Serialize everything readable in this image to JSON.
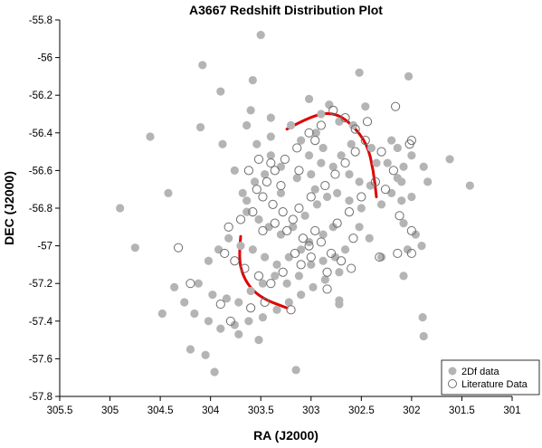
{
  "chart_data": {
    "type": "scatter",
    "title": "A3667 Redshift Distribution Plot",
    "xlabel": "RA (J2000)",
    "ylabel": "DEC (J2000)",
    "xlim": [
      305.5,
      301
    ],
    "ylim": [
      -57.8,
      -55.8
    ],
    "x_reversed": true,
    "xticks": [
      305.5,
      305,
      304.5,
      304,
      303.5,
      303,
      302.5,
      302,
      301.5,
      301
    ],
    "yticks": [
      -55.8,
      -56,
      -56.2,
      -56.4,
      -56.6,
      -56.8,
      -57,
      -57.2,
      -57.4,
      -57.6,
      -57.8
    ],
    "xtick_labels": [
      "305.5",
      "305",
      "304.5",
      "304",
      "303.5",
      "303",
      "302.5",
      "302",
      "301.5",
      "301"
    ],
    "ytick_labels": [
      "-55.8",
      "-56",
      "-56.2",
      "-56.4",
      "-56.6",
      "-56.8",
      "-57",
      "-57.2",
      "-57.4",
      "-57.6",
      "-57.8"
    ],
    "grid": false,
    "legend_position": "bottom-right",
    "colors": {
      "filled": "#b4b4b4",
      "open_stroke": "#6e6e6e",
      "curve": "#e00000"
    },
    "series": [
      {
        "name": "2Df data",
        "marker": "filled-circle",
        "points": [
          [
            303.5,
            -55.88
          ],
          [
            304.08,
            -56.04
          ],
          [
            302.52,
            -56.08
          ],
          [
            302.03,
            -56.1
          ],
          [
            304.6,
            -56.42
          ],
          [
            304.1,
            -56.37
          ],
          [
            304.42,
            -56.72
          ],
          [
            304.9,
            -56.8
          ],
          [
            304.75,
            -57.01
          ],
          [
            303.9,
            -56.18
          ],
          [
            303.58,
            -56.12
          ],
          [
            303.6,
            -56.28
          ],
          [
            303.88,
            -56.46
          ],
          [
            303.02,
            -56.22
          ],
          [
            302.82,
            -56.25
          ],
          [
            302.72,
            -56.34
          ],
          [
            302.95,
            -56.4
          ],
          [
            303.1,
            -56.44
          ],
          [
            302.88,
            -56.48
          ],
          [
            302.7,
            -56.52
          ],
          [
            302.78,
            -56.58
          ],
          [
            302.62,
            -56.62
          ],
          [
            302.52,
            -56.66
          ],
          [
            302.41,
            -56.68
          ],
          [
            302.3,
            -56.78
          ],
          [
            302.35,
            -56.56
          ],
          [
            302.6,
            -56.46
          ],
          [
            302.9,
            -56.56
          ],
          [
            303.0,
            -56.62
          ],
          [
            303.14,
            -56.64
          ],
          [
            303.3,
            -56.58
          ],
          [
            303.4,
            -56.52
          ],
          [
            303.46,
            -56.62
          ],
          [
            303.56,
            -56.66
          ],
          [
            303.68,
            -56.72
          ],
          [
            303.64,
            -56.82
          ],
          [
            303.52,
            -56.86
          ],
          [
            303.42,
            -56.9
          ],
          [
            303.3,
            -56.94
          ],
          [
            303.18,
            -56.9
          ],
          [
            303.06,
            -56.84
          ],
          [
            302.94,
            -56.78
          ],
          [
            302.84,
            -56.74
          ],
          [
            302.74,
            -56.72
          ],
          [
            302.62,
            -56.76
          ],
          [
            302.78,
            -56.9
          ],
          [
            302.88,
            -56.94
          ],
          [
            303.02,
            -56.98
          ],
          [
            303.1,
            -57.02
          ],
          [
            303.22,
            -57.06
          ],
          [
            303.34,
            -57.1
          ],
          [
            303.46,
            -57.06
          ],
          [
            303.58,
            -57.02
          ],
          [
            303.7,
            -57.0
          ],
          [
            303.82,
            -56.96
          ],
          [
            303.92,
            -57.02
          ],
          [
            304.02,
            -57.08
          ],
          [
            304.12,
            -57.2
          ],
          [
            303.98,
            -57.26
          ],
          [
            303.84,
            -57.28
          ],
          [
            303.72,
            -57.3
          ],
          [
            303.6,
            -57.24
          ],
          [
            303.48,
            -57.2
          ],
          [
            303.36,
            -57.16
          ],
          [
            303.24,
            -57.2
          ],
          [
            303.12,
            -57.16
          ],
          [
            303.0,
            -57.1
          ],
          [
            302.88,
            -57.08
          ],
          [
            302.76,
            -57.06
          ],
          [
            302.66,
            -57.02
          ],
          [
            302.72,
            -57.14
          ],
          [
            302.86,
            -57.18
          ],
          [
            302.98,
            -57.22
          ],
          [
            303.1,
            -57.26
          ],
          [
            303.22,
            -57.3
          ],
          [
            303.34,
            -57.34
          ],
          [
            303.48,
            -57.38
          ],
          [
            303.62,
            -57.4
          ],
          [
            303.76,
            -57.42
          ],
          [
            303.9,
            -57.44
          ],
          [
            304.02,
            -57.4
          ],
          [
            304.16,
            -57.36
          ],
          [
            304.26,
            -57.3
          ],
          [
            304.36,
            -57.22
          ],
          [
            304.48,
            -57.36
          ],
          [
            304.2,
            -57.55
          ],
          [
            304.05,
            -57.58
          ],
          [
            303.96,
            -57.67
          ],
          [
            303.72,
            -57.47
          ],
          [
            303.52,
            -57.5
          ],
          [
            303.15,
            -57.66
          ],
          [
            302.72,
            -57.29
          ],
          [
            302.72,
            -57.31
          ],
          [
            301.89,
            -57.38
          ],
          [
            301.88,
            -57.48
          ],
          [
            301.42,
            -56.68
          ],
          [
            301.62,
            -56.54
          ],
          [
            301.88,
            -56.58
          ],
          [
            301.84,
            -56.66
          ],
          [
            302.0,
            -56.52
          ],
          [
            302.14,
            -56.48
          ],
          [
            302.2,
            -56.44
          ],
          [
            302.08,
            -56.58
          ],
          [
            302.1,
            -56.66
          ],
          [
            302.2,
            -56.72
          ],
          [
            302.1,
            -56.76
          ],
          [
            302.0,
            -56.74
          ],
          [
            302.08,
            -56.88
          ],
          [
            301.96,
            -56.94
          ],
          [
            302.04,
            -57.02
          ],
          [
            301.9,
            -57.0
          ],
          [
            302.08,
            -57.16
          ],
          [
            302.3,
            -57.06
          ],
          [
            302.42,
            -56.96
          ],
          [
            302.52,
            -56.9
          ],
          [
            303.64,
            -56.76
          ],
          [
            303.76,
            -56.6
          ],
          [
            303.54,
            -56.46
          ],
          [
            303.4,
            -56.42
          ],
          [
            303.2,
            -56.36
          ],
          [
            302.58,
            -56.36
          ],
          [
            302.46,
            -56.26
          ],
          [
            302.4,
            -56.48
          ],
          [
            302.24,
            -56.56
          ],
          [
            302.14,
            -56.64
          ],
          [
            303.4,
            -56.32
          ],
          [
            303.64,
            -56.36
          ],
          [
            303.3,
            -56.72
          ],
          [
            302.96,
            -56.7
          ],
          [
            302.5,
            -56.8
          ],
          [
            302.9,
            -56.3
          ],
          [
            303.02,
            -56.52
          ]
        ]
      },
      {
        "name": "Literature Data",
        "marker": "open-circle",
        "points": [
          [
            304.32,
            -57.01
          ],
          [
            304.2,
            -57.2
          ],
          [
            303.9,
            -57.31
          ],
          [
            303.8,
            -57.4
          ],
          [
            303.6,
            -57.33
          ],
          [
            303.46,
            -57.3
          ],
          [
            303.2,
            -57.34
          ],
          [
            302.84,
            -57.23
          ],
          [
            303.1,
            -57.1
          ],
          [
            303.0,
            -57.06
          ],
          [
            302.6,
            -57.12
          ],
          [
            302.32,
            -57.06
          ],
          [
            302.58,
            -56.96
          ],
          [
            302.74,
            -56.88
          ],
          [
            302.96,
            -56.92
          ],
          [
            303.08,
            -56.96
          ],
          [
            303.18,
            -56.86
          ],
          [
            303.28,
            -56.82
          ],
          [
            303.38,
            -56.78
          ],
          [
            303.48,
            -56.74
          ],
          [
            303.58,
            -56.82
          ],
          [
            303.7,
            -56.86
          ],
          [
            303.82,
            -56.9
          ],
          [
            303.86,
            -57.04
          ],
          [
            303.76,
            -57.08
          ],
          [
            303.66,
            -57.12
          ],
          [
            303.52,
            -57.16
          ],
          [
            303.4,
            -57.2
          ],
          [
            303.28,
            -57.14
          ],
          [
            303.16,
            -57.04
          ],
          [
            303.02,
            -57.0
          ],
          [
            302.9,
            -56.98
          ],
          [
            302.8,
            -57.04
          ],
          [
            302.7,
            -57.08
          ],
          [
            303.48,
            -56.92
          ],
          [
            303.36,
            -56.88
          ],
          [
            303.24,
            -56.92
          ],
          [
            303.12,
            -56.8
          ],
          [
            303.0,
            -56.74
          ],
          [
            302.86,
            -56.68
          ],
          [
            302.76,
            -56.62
          ],
          [
            302.66,
            -56.56
          ],
          [
            302.56,
            -56.5
          ],
          [
            302.46,
            -56.44
          ],
          [
            302.56,
            -56.38
          ],
          [
            302.66,
            -56.32
          ],
          [
            302.78,
            -56.28
          ],
          [
            302.9,
            -56.36
          ],
          [
            303.02,
            -56.4
          ],
          [
            303.14,
            -56.48
          ],
          [
            303.26,
            -56.54
          ],
          [
            303.36,
            -56.6
          ],
          [
            303.44,
            -56.66
          ],
          [
            303.54,
            -56.7
          ],
          [
            303.62,
            -56.6
          ],
          [
            303.52,
            -56.54
          ],
          [
            303.4,
            -56.56
          ],
          [
            302.44,
            -56.34
          ],
          [
            302.3,
            -56.5
          ],
          [
            302.18,
            -56.6
          ],
          [
            302.26,
            -56.7
          ],
          [
            302.36,
            -56.66
          ],
          [
            302.16,
            -56.26
          ],
          [
            302.0,
            -56.44
          ],
          [
            302.02,
            -56.46
          ],
          [
            302.12,
            -56.84
          ],
          [
            302.0,
            -56.92
          ],
          [
            302.14,
            -57.04
          ],
          [
            302.0,
            -57.04
          ],
          [
            302.84,
            -57.14
          ],
          [
            302.5,
            -56.74
          ],
          [
            302.96,
            -56.44
          ],
          [
            302.62,
            -56.82
          ],
          [
            303.3,
            -56.68
          ],
          [
            303.12,
            -56.6
          ]
        ]
      }
    ],
    "annotations": [
      {
        "type": "curve",
        "points": [
          [
            303.24,
            -56.38
          ],
          [
            303.0,
            -56.31
          ],
          [
            302.78,
            -56.29
          ],
          [
            302.6,
            -56.35
          ],
          [
            302.44,
            -56.46
          ],
          [
            302.38,
            -56.6
          ],
          [
            302.35,
            -56.74
          ]
        ]
      },
      {
        "type": "curve",
        "points": [
          [
            303.7,
            -56.95
          ],
          [
            303.72,
            -57.06
          ],
          [
            303.68,
            -57.16
          ],
          [
            303.58,
            -57.24
          ],
          [
            303.44,
            -57.29
          ],
          [
            303.24,
            -57.33
          ]
        ]
      }
    ]
  }
}
